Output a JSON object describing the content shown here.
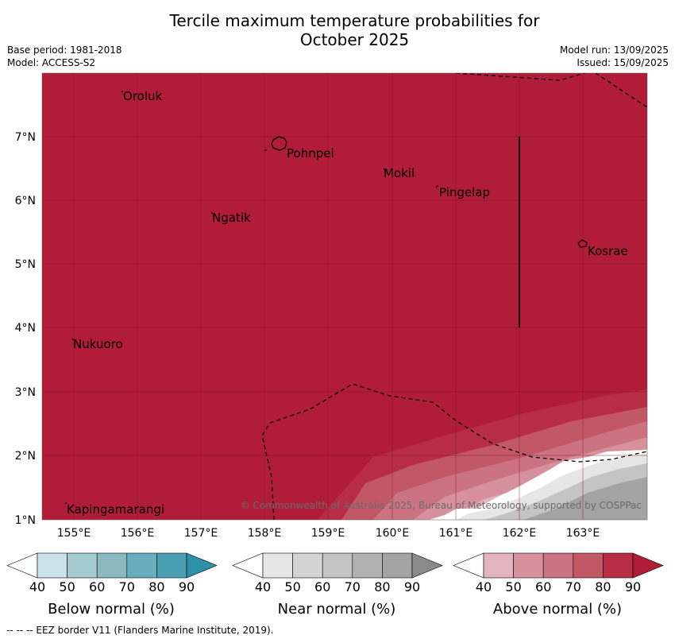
{
  "title_line1": "Tercile maximum temperature probabilities for",
  "title_line2": "October 2025",
  "meta_left": [
    "Base period: 1981-2018",
    "Model: ACCESS-S2"
  ],
  "meta_right": [
    "Model run: 13/09/2025",
    "Issued: 15/09/2025"
  ],
  "map": {
    "lat_ticks": [
      "1°N",
      "2°N",
      "3°N",
      "4°N",
      "5°N",
      "6°N",
      "7°N"
    ],
    "lon_ticks": [
      "155°E",
      "156°E",
      "157°E",
      "158°E",
      "159°E",
      "160°E",
      "161°E",
      "162°E",
      "163°E"
    ],
    "places": [
      "Oroluk",
      "Pohnpei",
      "Mokil",
      "Pingelap",
      "Ngatik",
      "Kosrae",
      "Nukuoro",
      "Kapingamarangi"
    ],
    "copyright": "© Commonwealth of Australia 2025, Bureau of Meteorology, supported by COSPPac",
    "colors": {
      "above_90": "#b11d38",
      "land_outline": "#000000",
      "grid": "#7a1426"
    }
  },
  "colorbars": [
    {
      "title": "Below normal (%)",
      "labels": [
        "40",
        "50",
        "60",
        "70",
        "80",
        "90"
      ],
      "colors": [
        "#ffffff",
        "#c8e2e8",
        "#a5cbd1",
        "#8cb8c2",
        "#6aaebd",
        "#4a9fb2",
        "#2e90a7"
      ]
    },
    {
      "title": "Near normal (%)",
      "labels": [
        "40",
        "50",
        "60",
        "70",
        "80",
        "90"
      ],
      "colors": [
        "#ffffff",
        "#e6e6e6",
        "#d4d4d4",
        "#c4c4c4",
        "#b2b2b2",
        "#a3a3a3",
        "#8a8a8a"
      ]
    },
    {
      "title": "Above normal (%)",
      "labels": [
        "40",
        "50",
        "60",
        "70",
        "80",
        "90"
      ],
      "colors": [
        "#ffffff",
        "#e2b4bd",
        "#d6919c",
        "#cb7380",
        "#c25766",
        "#b72d45",
        "#b11d38"
      ]
    }
  ],
  "footer": "--  --  -- EEZ border V11 (Flanders Marine Institute, 2019)."
}
